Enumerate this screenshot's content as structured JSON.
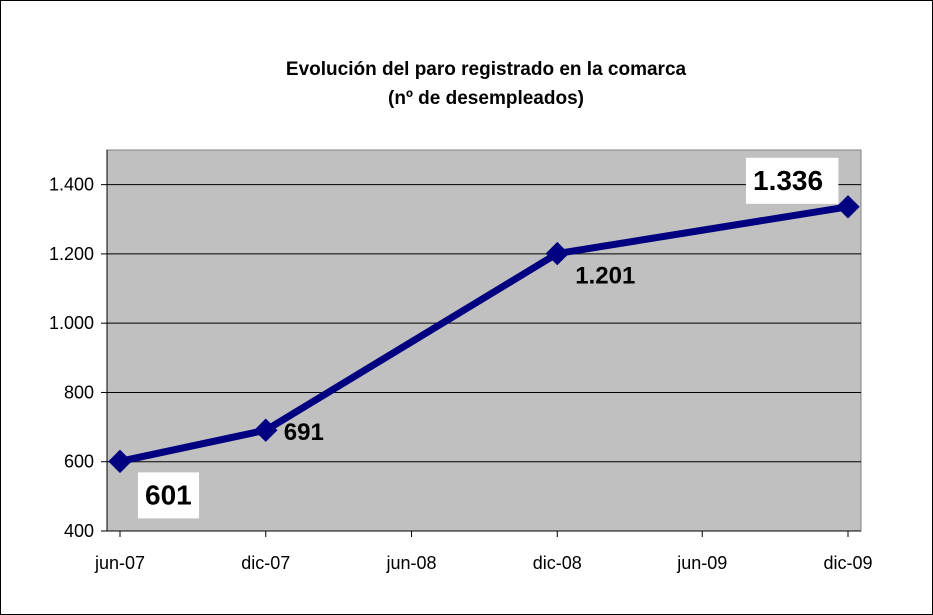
{
  "chart_data": {
    "type": "line",
    "title": "Evolución del paro registrado en la comarca",
    "subtitle": "(nº de desempleados)",
    "xlabel": "",
    "ylabel": "",
    "ylim": [
      400,
      1500
    ],
    "y_ticks": [
      400,
      600,
      800,
      1000,
      1200,
      1400
    ],
    "y_tick_labels": [
      "400",
      "600",
      "800",
      "1.000",
      "1.200",
      "1.400"
    ],
    "x_tick_labels": [
      "jun-07",
      "dic-07",
      "jun-08",
      "dic-08",
      "jun-09",
      "dic-09"
    ],
    "grid": true,
    "plot_background": "#C0C0C0",
    "series": [
      {
        "color": "#000080",
        "x": [
          "2007-06-01",
          "2007-12-01",
          "2008-12-01",
          "2009-12-01"
        ],
        "values": [
          601,
          691,
          1201,
          1336
        ],
        "labels": [
          "601",
          "691",
          "1.201",
          "1.336"
        ]
      }
    ]
  }
}
